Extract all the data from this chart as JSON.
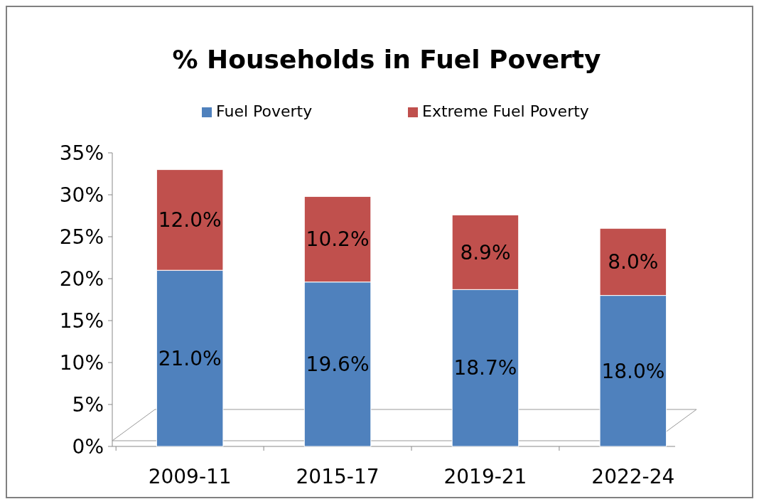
{
  "chart_data": {
    "type": "bar",
    "title": "% Households in Fuel Poverty",
    "categories": [
      "2009-11",
      "2015-17",
      "2019-21",
      "2022-24"
    ],
    "series": [
      {
        "name": "Fuel Poverty",
        "color": "#4f81bd",
        "values": [
          21.0,
          19.6,
          18.7,
          18.0
        ],
        "value_labels": [
          "21.0%",
          "19.6%",
          "18.7%",
          "18.0%"
        ]
      },
      {
        "name": "Extreme Fuel Poverty",
        "color": "#c0504d",
        "values": [
          12.0,
          10.2,
          8.9,
          8.0
        ],
        "value_labels": [
          "12.0%",
          "10.2%",
          "8.9%",
          "8.0%"
        ]
      }
    ],
    "stacked": true,
    "ylim": [
      0,
      35
    ],
    "yticks": [
      {
        "value": 0,
        "label": "0%"
      },
      {
        "value": 5,
        "label": "5%"
      },
      {
        "value": 10,
        "label": "10%"
      },
      {
        "value": 15,
        "label": "15%"
      },
      {
        "value": 20,
        "label": "20%"
      },
      {
        "value": 25,
        "label": "25%"
      },
      {
        "value": 30,
        "label": "30%"
      },
      {
        "value": 35,
        "label": "35%"
      }
    ],
    "legend": "top"
  }
}
